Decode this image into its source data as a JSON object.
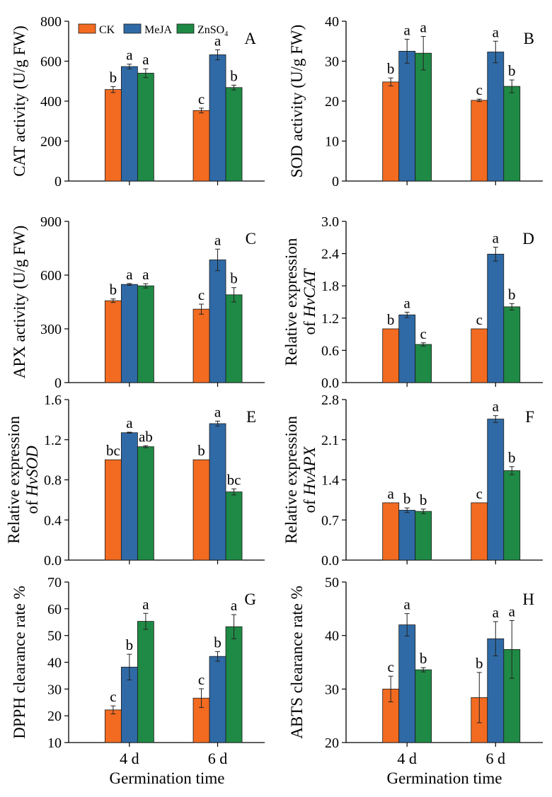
{
  "colors": {
    "CK": "#f26b21",
    "MeJA": "#2f6aa6",
    "ZnSO4": "#1f8a45"
  },
  "legend": [
    {
      "key": "CK",
      "label": "CK",
      "sub": ""
    },
    {
      "key": "MeJA",
      "label": "MeJA",
      "sub": ""
    },
    {
      "key": "ZnSO4",
      "label": "ZnSO",
      "sub": "4"
    }
  ],
  "xlabel": "Germination  time",
  "chart_data": [
    {
      "id": "A",
      "type": "bar",
      "panel_label": "A",
      "ylabel": "CAT activity (U/g FW)",
      "ylim": [
        0,
        800
      ],
      "yticks": [
        0,
        200,
        400,
        600,
        800
      ],
      "decimals": 0,
      "categories": [
        "4 d",
        "6 d"
      ],
      "series": [
        {
          "name": "CK",
          "values": [
            458,
            353
          ],
          "err": [
            15,
            12
          ],
          "letters": [
            "b",
            "c"
          ]
        },
        {
          "name": "MeJA",
          "values": [
            573,
            632
          ],
          "err": [
            12,
            25
          ],
          "letters": [
            "a",
            "a"
          ]
        },
        {
          "name": "ZnSO4",
          "values": [
            540,
            468
          ],
          "err": [
            22,
            12
          ],
          "letters": [
            "a",
            "b"
          ]
        }
      ]
    },
    {
      "id": "B",
      "type": "bar",
      "panel_label": "B",
      "ylabel": "SOD activity (U/g FW)",
      "ylim": [
        0,
        40
      ],
      "yticks": [
        0,
        10,
        20,
        30,
        40
      ],
      "decimals": 0,
      "categories": [
        "4 d",
        "6 d"
      ],
      "series": [
        {
          "name": "CK",
          "values": [
            24.8,
            20.2
          ],
          "err": [
            1.0,
            0.3
          ],
          "letters": [
            "b",
            "c"
          ]
        },
        {
          "name": "MeJA",
          "values": [
            32.5,
            32.3
          ],
          "err": [
            3.0,
            2.7
          ],
          "letters": [
            "a",
            "a"
          ]
        },
        {
          "name": "ZnSO4",
          "values": [
            32.0,
            23.7
          ],
          "err": [
            4.2,
            1.6
          ],
          "letters": [
            "a",
            "b"
          ]
        }
      ]
    },
    {
      "id": "C",
      "type": "bar",
      "panel_label": "C",
      "ylabel": "APX activity (U/g FW)",
      "ylim": [
        0,
        900
      ],
      "yticks": [
        0,
        300,
        600,
        900
      ],
      "decimals": 0,
      "categories": [
        "4 d",
        "6 d"
      ],
      "series": [
        {
          "name": "CK",
          "values": [
            457,
            410
          ],
          "err": [
            10,
            28
          ],
          "letters": [
            "b",
            "c"
          ]
        },
        {
          "name": "MeJA",
          "values": [
            548,
            685
          ],
          "err": [
            5,
            60
          ],
          "letters": [
            "a",
            "a"
          ]
        },
        {
          "name": "ZnSO4",
          "values": [
            540,
            490
          ],
          "err": [
            12,
            40
          ],
          "letters": [
            "a",
            "b"
          ]
        }
      ]
    },
    {
      "id": "D",
      "type": "bar",
      "panel_label": "D",
      "ylabel_lines": [
        "Relative expression",
        "of "
      ],
      "ylabel_italic": "HvCAT",
      "ylim": [
        0,
        3
      ],
      "yticks": [
        0,
        0.6,
        1.2,
        1.8,
        2.4,
        3.0
      ],
      "decimals": 1,
      "categories": [
        "4 d",
        "6 d"
      ],
      "series": [
        {
          "name": "CK",
          "values": [
            1.0,
            1.0
          ],
          "err": [
            0,
            0
          ],
          "letters": [
            "b",
            "c"
          ]
        },
        {
          "name": "MeJA",
          "values": [
            1.26,
            2.39
          ],
          "err": [
            0.05,
            0.13
          ],
          "letters": [
            "a",
            "a"
          ]
        },
        {
          "name": "ZnSO4",
          "values": [
            0.71,
            1.41
          ],
          "err": [
            0.03,
            0.06
          ],
          "letters": [
            "c",
            "b"
          ]
        }
      ]
    },
    {
      "id": "E",
      "type": "bar",
      "panel_label": "E",
      "ylabel_lines": [
        "Relative expression",
        "of "
      ],
      "ylabel_italic": "HvSOD",
      "ylim": [
        0,
        1.6
      ],
      "yticks": [
        0,
        0.4,
        0.8,
        1.2,
        1.6
      ],
      "decimals": 1,
      "categories": [
        "4 d",
        "6 d"
      ],
      "series": [
        {
          "name": "CK",
          "values": [
            1.0,
            1.0
          ],
          "err": [
            0,
            0
          ],
          "letters": [
            "bc",
            "b"
          ]
        },
        {
          "name": "MeJA",
          "values": [
            1.27,
            1.36
          ],
          "err": [
            0.005,
            0.025
          ],
          "letters": [
            "a",
            "a"
          ]
        },
        {
          "name": "ZnSO4",
          "values": [
            1.13,
            0.68
          ],
          "err": [
            0.01,
            0.03
          ],
          "letters": [
            "ab",
            "bc"
          ]
        }
      ]
    },
    {
      "id": "F",
      "type": "bar",
      "panel_label": "F",
      "ylabel_lines": [
        "Relative expression",
        "of "
      ],
      "ylabel_italic": "HvAPX",
      "ylim": [
        0,
        2.8
      ],
      "yticks": [
        0,
        0.7,
        1.4,
        2.1,
        2.8
      ],
      "decimals": 1,
      "categories": [
        "4 d",
        "6 d"
      ],
      "series": [
        {
          "name": "CK",
          "values": [
            1.0,
            1.0
          ],
          "err": [
            0,
            0
          ],
          "letters": [
            "a",
            "c"
          ]
        },
        {
          "name": "MeJA",
          "values": [
            0.87,
            2.46
          ],
          "err": [
            0.04,
            0.06
          ],
          "letters": [
            "b",
            "a"
          ]
        },
        {
          "name": "ZnSO4",
          "values": [
            0.85,
            1.56
          ],
          "err": [
            0.04,
            0.07
          ],
          "letters": [
            "b",
            "b"
          ]
        }
      ]
    },
    {
      "id": "G",
      "type": "bar",
      "panel_label": "G",
      "ylabel": "DPPH clearance rate %",
      "ylim": [
        10,
        70
      ],
      "yticks": [
        10,
        20,
        30,
        40,
        50,
        60,
        70
      ],
      "decimals": 0,
      "categories": [
        "4 d",
        "6 d"
      ],
      "show_xticklabels": true,
      "series": [
        {
          "name": "CK",
          "values": [
            22.2,
            26.6
          ],
          "err": [
            1.5,
            3.5
          ],
          "letters": [
            "c",
            "c"
          ]
        },
        {
          "name": "MeJA",
          "values": [
            38.2,
            42.2
          ],
          "err": [
            4.8,
            1.8
          ],
          "letters": [
            "b",
            "b"
          ]
        },
        {
          "name": "ZnSO4",
          "values": [
            55.3,
            53.3
          ],
          "err": [
            3.0,
            4.5
          ],
          "letters": [
            "a",
            "a"
          ]
        }
      ]
    },
    {
      "id": "H",
      "type": "bar",
      "panel_label": "H",
      "ylabel": "ABTS clearance rate %",
      "ylim": [
        20,
        50
      ],
      "yticks": [
        20,
        30,
        40,
        50
      ],
      "decimals": 0,
      "categories": [
        "4 d",
        "6 d"
      ],
      "show_xticklabels": true,
      "series": [
        {
          "name": "CK",
          "values": [
            30.0,
            28.4
          ],
          "err": [
            2.4,
            4.7
          ],
          "letters": [
            "c",
            "b"
          ]
        },
        {
          "name": "MeJA",
          "values": [
            42.0,
            39.4
          ],
          "err": [
            2.1,
            3.2
          ],
          "letters": [
            "a",
            "a"
          ]
        },
        {
          "name": "ZnSO4",
          "values": [
            33.6,
            37.4
          ],
          "err": [
            0.4,
            5.4
          ],
          "letters": [
            "b",
            "a"
          ]
        }
      ]
    }
  ]
}
